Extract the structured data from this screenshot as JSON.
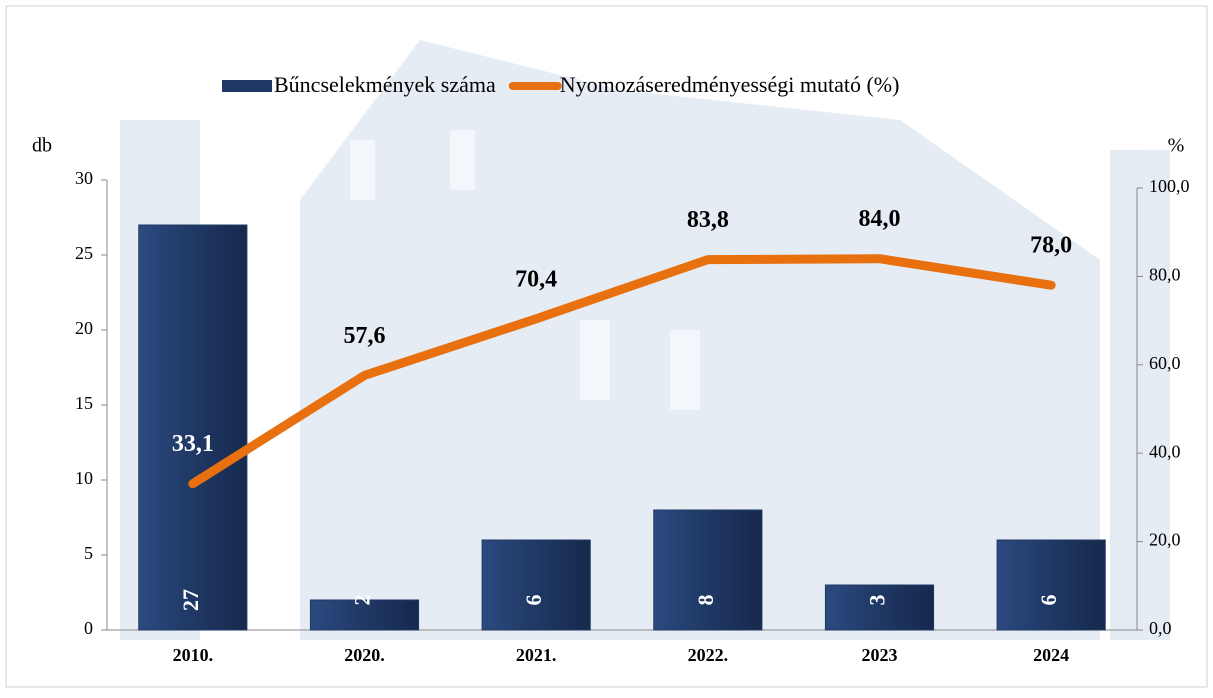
{
  "chart_data": {
    "type": "bar",
    "categories": [
      "2010.",
      "2020.",
      "2021.",
      "2022.",
      "2023",
      "2024"
    ],
    "ylabel": "db",
    "y2label": "%",
    "ylim": [
      0,
      30
    ],
    "yticks": [
      0,
      5,
      10,
      15,
      20,
      25,
      30
    ],
    "y2lim": [
      0,
      100
    ],
    "y2ticks": [
      {
        "value": 0,
        "label": "0,0"
      },
      {
        "value": 20,
        "label": "20,0"
      },
      {
        "value": 40,
        "label": "40,0"
      },
      {
        "value": 60,
        "label": "60,0"
      },
      {
        "value": 80,
        "label": "80,0"
      },
      {
        "value": 100,
        "label": "100,0"
      }
    ],
    "legend": "top",
    "series": [
      {
        "name": "Bűncselekmények száma",
        "type": "bar",
        "color": "#1f3864",
        "values": [
          27,
          2,
          6,
          8,
          3,
          6
        ]
      },
      {
        "name": "Nyomozáseredményességi mutató (%)",
        "type": "line",
        "axis": "y2",
        "color": "#e8700f",
        "values": [
          33.1,
          57.6,
          70.4,
          83.8,
          84.0,
          78.0
        ],
        "value_labels": [
          "33,1",
          "57,6",
          "70,4",
          "83,8",
          "84,0",
          "78,0"
        ]
      }
    ]
  }
}
